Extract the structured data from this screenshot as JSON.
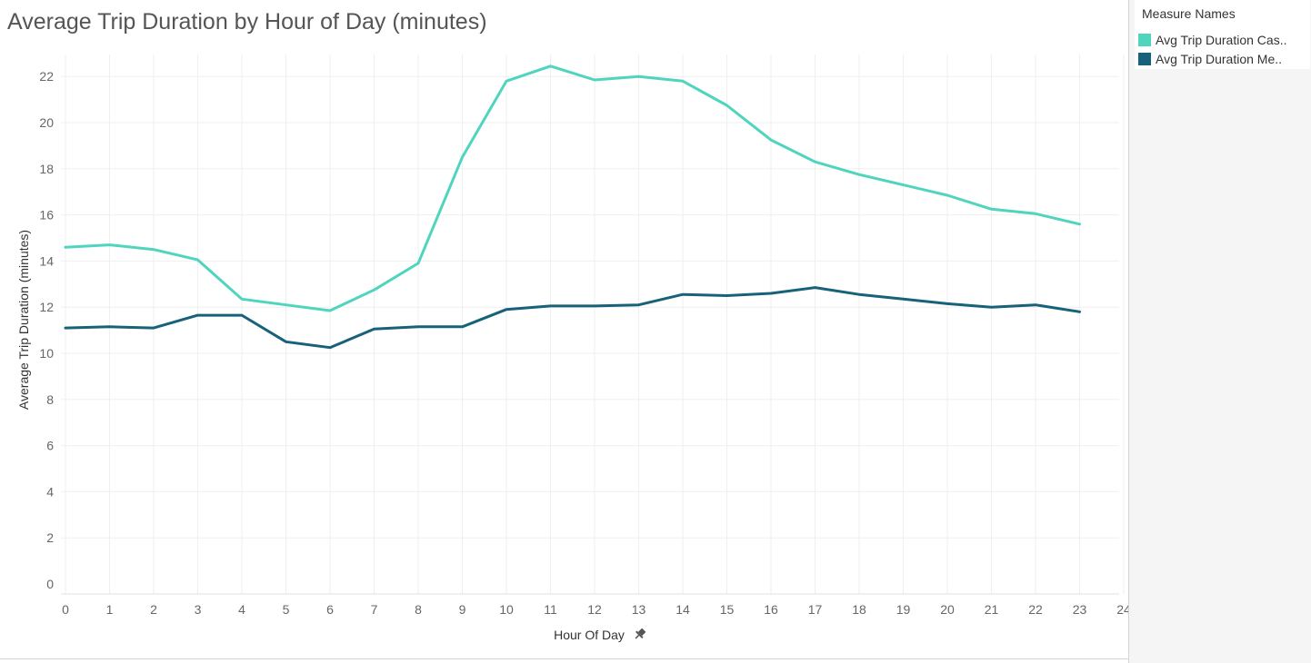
{
  "colors": {
    "casual": "#4fd5bd",
    "member": "#17627a",
    "grid": "#efefef",
    "axis_text": "#666666"
  },
  "legend": {
    "title": "Measure Names",
    "items": [
      {
        "label": "Avg Trip Duration Cas..",
        "color": "#4fd5bd"
      },
      {
        "label": "Avg Trip Duration Me..",
        "color": "#17627a"
      }
    ]
  },
  "chart_data": {
    "type": "line",
    "title": "Average Trip Duration by Hour of Day (minutes)",
    "xlabel": "Hour Of Day",
    "xlabel_icon": "pin-icon",
    "ylabel": "Average Trip Duration (minutes)",
    "xlim": [
      0,
      24
    ],
    "ylim": [
      0,
      23
    ],
    "x_ticks": [
      0,
      1,
      2,
      3,
      4,
      5,
      6,
      7,
      8,
      9,
      10,
      11,
      12,
      13,
      14,
      15,
      16,
      17,
      18,
      19,
      20,
      21,
      22,
      23,
      24
    ],
    "y_ticks": [
      0,
      2,
      4,
      6,
      8,
      10,
      12,
      14,
      16,
      18,
      20,
      22
    ],
    "grid": true,
    "x": [
      0,
      1,
      2,
      3,
      4,
      5,
      6,
      7,
      8,
      9,
      10,
      11,
      12,
      13,
      14,
      15,
      16,
      17,
      18,
      19,
      20,
      21,
      22,
      23
    ],
    "series": [
      {
        "name": "Avg Trip Duration Cas..",
        "color": "#4fd5bd",
        "values": [
          14.6,
          14.7,
          14.5,
          14.05,
          12.35,
          12.1,
          11.85,
          12.75,
          13.9,
          18.5,
          21.8,
          22.45,
          21.85,
          22.0,
          21.8,
          20.75,
          19.25,
          18.3,
          17.75,
          17.3,
          16.85,
          16.25,
          16.05,
          15.6
        ]
      },
      {
        "name": "Avg Trip Duration Me..",
        "color": "#17627a",
        "values": [
          11.1,
          11.15,
          11.1,
          11.65,
          11.65,
          10.5,
          10.25,
          11.05,
          11.15,
          11.15,
          11.9,
          12.05,
          12.05,
          12.1,
          12.55,
          12.5,
          12.6,
          12.85,
          12.55,
          12.35,
          12.15,
          12.0,
          12.1,
          11.8
        ]
      }
    ]
  }
}
